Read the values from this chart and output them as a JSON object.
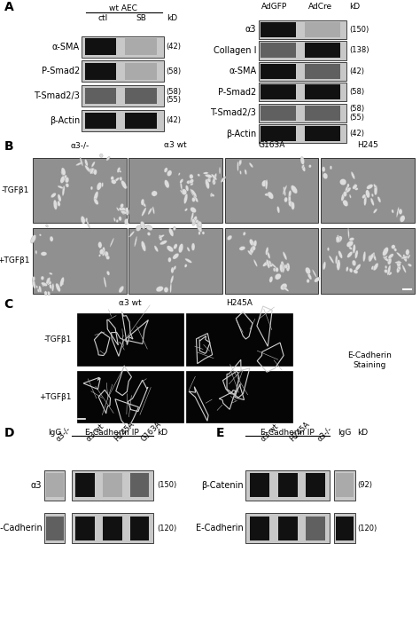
{
  "panel_A_left": {
    "title": "wt AEC",
    "col_labels": [
      "ctl",
      "SB"
    ],
    "row_labels": [
      "α-SMA",
      "P-Smad2",
      "T-Smad2/3",
      "β-Actin"
    ],
    "kd_labels": [
      "(42)",
      "(58)",
      "(58)\n(55)",
      "(42)"
    ]
  },
  "panel_A_right": {
    "col_labels": [
      "AdGFP",
      "AdCre"
    ],
    "row_labels": [
      "α3",
      "Collagen I",
      "α-SMA",
      "P-Smad2",
      "T-Smad2/3",
      "β-Actin"
    ],
    "kd_labels": [
      "(150)",
      "(138)",
      "(42)",
      "(58)",
      "(58)\n(55)",
      "(42)"
    ]
  },
  "panel_B": {
    "col_labels": [
      "α3-/-",
      "α3 wt",
      "G163A",
      "H245"
    ],
    "row_labels": [
      "-TGFβ1",
      "+TGFβ1"
    ]
  },
  "panel_C": {
    "col_labels": [
      "α3 wt",
      "H245A"
    ],
    "row_labels": [
      "-TGFβ1",
      "+TGFβ1"
    ],
    "right_label": "E-Cadherin\nStaining"
  },
  "panel_D": {
    "igg_label": "IgG",
    "ip_label": "E-Cadherin IP",
    "col_labels": [
      "α3-/-",
      "α3 wt",
      "H245A",
      "G163A"
    ],
    "row_labels": [
      "α3",
      "E-Cadherin"
    ],
    "kd_labels": [
      "(150)",
      "(120)"
    ]
  },
  "panel_E": {
    "ip_label": "E-Cadherin IP",
    "igg_label": "IgG",
    "col_labels": [
      "α3 wt",
      "H245A",
      "α3-/-"
    ],
    "row_labels": [
      "β-Catenin",
      "E-Cadherin"
    ],
    "kd_labels": [
      "(92)",
      "(120)"
    ]
  },
  "bg_color": "#ffffff",
  "blot_bg": "#c8c8c8",
  "blot_band_dark": "#111111",
  "blot_band_mid": "#606060",
  "blot_band_light": "#aaaaaa",
  "micro_bg": "#909090",
  "fluor_bg": "#050505",
  "border_color": "#000000",
  "text_color": "#000000",
  "fs": 6.5,
  "fs_panel": 10,
  "fs_row": 7
}
